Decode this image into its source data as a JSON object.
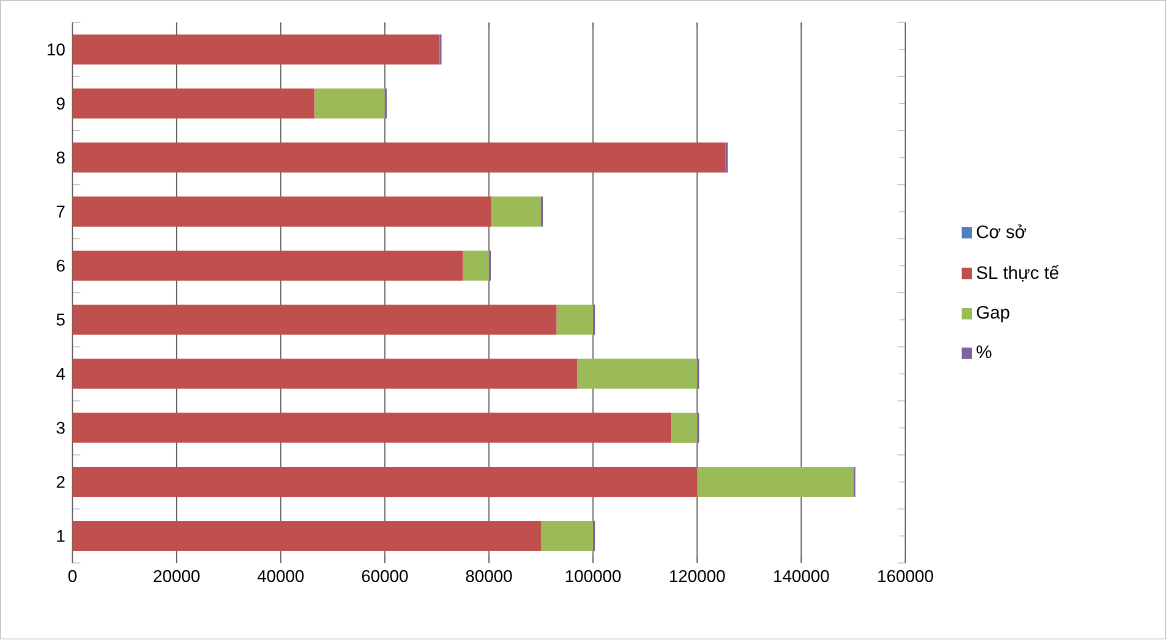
{
  "chart_data": {
    "type": "bar",
    "orientation": "horizontal",
    "stacked": true,
    "categories": [
      "10",
      "9",
      "8",
      "7",
      "6",
      "5",
      "4",
      "3",
      "2",
      "1"
    ],
    "series": [
      {
        "name": "Cơ sở",
        "color": "#4f81bd",
        "values": [
          0,
          0,
          0,
          0,
          0,
          0,
          0,
          0,
          0,
          0
        ]
      },
      {
        "name": "SL thực tế",
        "color": "#c0504d",
        "values": [
          70500,
          46500,
          125500,
          80500,
          75000,
          93000,
          97000,
          115000,
          120000,
          90000
        ]
      },
      {
        "name": "Gap",
        "color": "#9bbb59",
        "values": [
          0,
          13500,
          0,
          9500,
          5000,
          7000,
          23000,
          5000,
          30000,
          10000
        ]
      },
      {
        "name": "%",
        "color": "#8064a2",
        "values": [
          400,
          400,
          400,
          400,
          400,
          400,
          400,
          400,
          400,
          400
        ]
      }
    ],
    "xlim": [
      0,
      160000
    ],
    "xticks": [
      0,
      20000,
      40000,
      60000,
      80000,
      100000,
      120000,
      140000,
      160000
    ],
    "grid": "x",
    "legend": "right"
  }
}
